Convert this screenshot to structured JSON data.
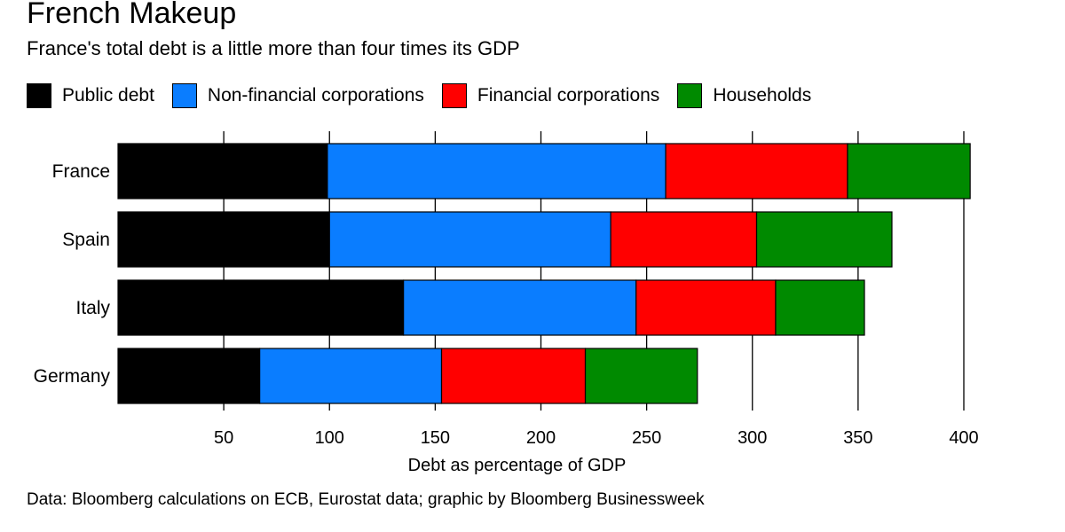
{
  "title": "French Makeup",
  "subtitle": "France's total debt is a little more than four times its GDP",
  "footer": "Data: Bloomberg calculations on ECB, Eurostat data; graphic by Bloomberg Businessweek",
  "colors": {
    "public": "#000000",
    "nonfin": "#0a7dff",
    "fin": "#ff0000",
    "households": "#008a00"
  },
  "chart_data": {
    "type": "bar",
    "orientation": "horizontal",
    "stacked": true,
    "title": "French Makeup",
    "subtitle": "France's total debt is a little more than four times its GDP",
    "xlabel": "Debt as percentage of GDP",
    "ylabel": "",
    "xlim": [
      0,
      400
    ],
    "xticks": [
      50,
      100,
      150,
      200,
      250,
      300,
      350,
      400
    ],
    "grid": "vertical",
    "legend_position": "top",
    "categories": [
      "France",
      "Spain",
      "Italy",
      "Germany"
    ],
    "series": [
      {
        "name": "Public debt",
        "color": "#000000",
        "values": [
          99,
          100,
          135,
          67
        ]
      },
      {
        "name": "Non-financial corporations",
        "color": "#0a7dff",
        "values": [
          160,
          133,
          110,
          86
        ]
      },
      {
        "name": "Financial corporations",
        "color": "#ff0000",
        "values": [
          86,
          69,
          66,
          68
        ]
      },
      {
        "name": "Households",
        "color": "#008a00",
        "values": [
          58,
          64,
          42,
          53
        ]
      }
    ]
  }
}
